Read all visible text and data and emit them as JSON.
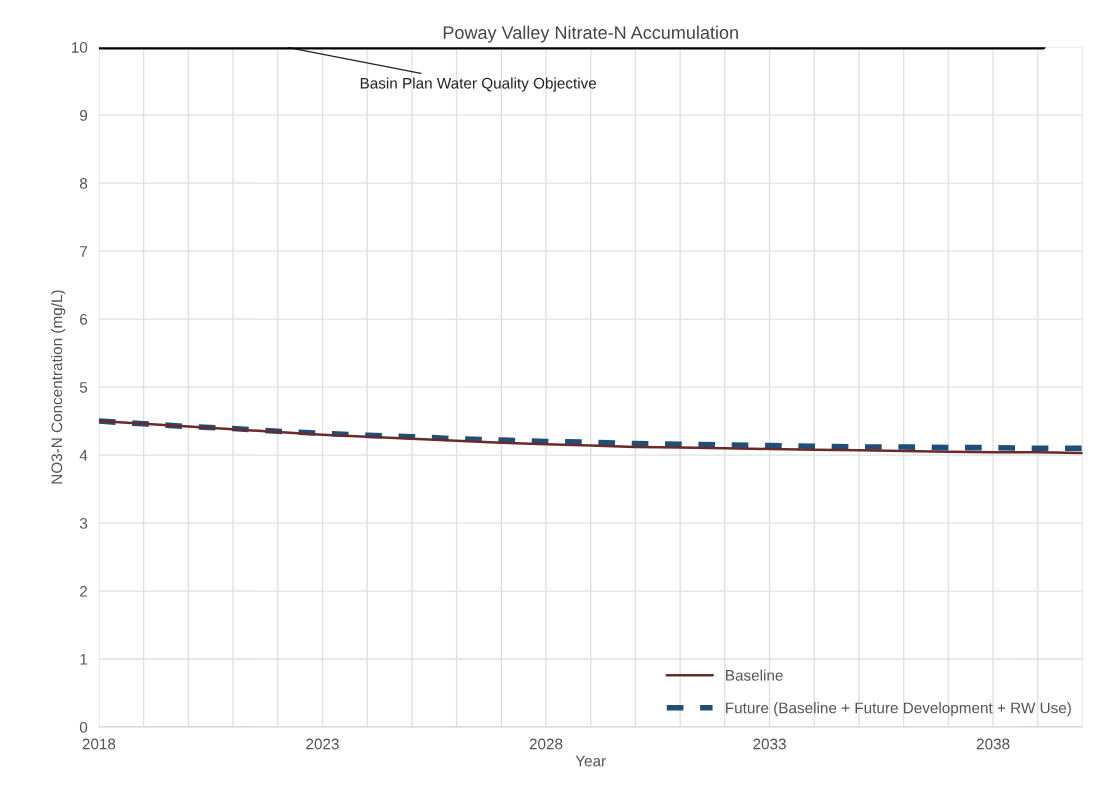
{
  "chart_data": {
    "type": "line",
    "title": "Poway Valley Nitrate-N Accumulation",
    "xlabel": "Year",
    "ylabel": "NO3-N Concentration (mg/L)",
    "x": [
      2018,
      2019,
      2020,
      2021,
      2022,
      2023,
      2024,
      2025,
      2026,
      2027,
      2028,
      2029,
      2030,
      2031,
      2032,
      2033,
      2034,
      2035,
      2036,
      2037,
      2038,
      2039,
      2040
    ],
    "series": [
      {
        "name": "Baseline",
        "color": "#6b2a2a",
        "line_style": "solid",
        "values": [
          4.5,
          4.46,
          4.42,
          4.38,
          4.34,
          4.3,
          4.27,
          4.24,
          4.21,
          4.18,
          4.16,
          4.14,
          4.12,
          4.11,
          4.1,
          4.09,
          4.08,
          4.07,
          4.06,
          4.05,
          4.04,
          4.04,
          4.03
        ]
      },
      {
        "name": "Future (Baseline + Future Development + RW Use)",
        "color": "#1f4e79",
        "line_style": "dashed",
        "values": [
          4.5,
          4.46,
          4.42,
          4.39,
          4.35,
          4.32,
          4.29,
          4.27,
          4.24,
          4.22,
          4.2,
          4.19,
          4.17,
          4.16,
          4.15,
          4.14,
          4.13,
          4.12,
          4.12,
          4.11,
          4.11,
          4.1,
          4.1
        ]
      }
    ],
    "ref_lines": [
      {
        "axis": "y",
        "value": 10,
        "label": "Basin Plan Water Quality Objective",
        "color": "#000000",
        "line_style": "solid"
      }
    ],
    "xlim": [
      2018,
      2040
    ],
    "ylim": [
      0,
      10
    ],
    "xticks": [
      2018,
      {
        "value": 2019,
        "label": null
      },
      {
        "value": 2020,
        "label": null
      },
      {
        "value": 2021,
        "label": null
      },
      {
        "value": 2022,
        "label": null
      },
      2023,
      {
        "value": 2024,
        "label": null
      },
      {
        "value": 2025,
        "label": null
      },
      {
        "value": 2026,
        "label": null
      },
      {
        "value": 2027,
        "label": null
      },
      2028,
      {
        "value": 2029,
        "label": null
      },
      {
        "value": 2030,
        "label": null
      },
      {
        "value": 2031,
        "label": null
      },
      {
        "value": 2032,
        "label": null
      },
      2033,
      {
        "value": 2034,
        "label": null
      },
      {
        "value": 2035,
        "label": null
      },
      {
        "value": 2036,
        "label": null
      },
      {
        "value": 2037,
        "label": null
      },
      2038,
      {
        "value": 2039,
        "label": null
      },
      {
        "value": 2040,
        "label": null
      }
    ],
    "yticks": [
      0,
      1,
      2,
      3,
      4,
      5,
      6,
      7,
      8,
      9,
      10
    ],
    "grid": true,
    "legend": "bottom right",
    "marker": "none"
  }
}
